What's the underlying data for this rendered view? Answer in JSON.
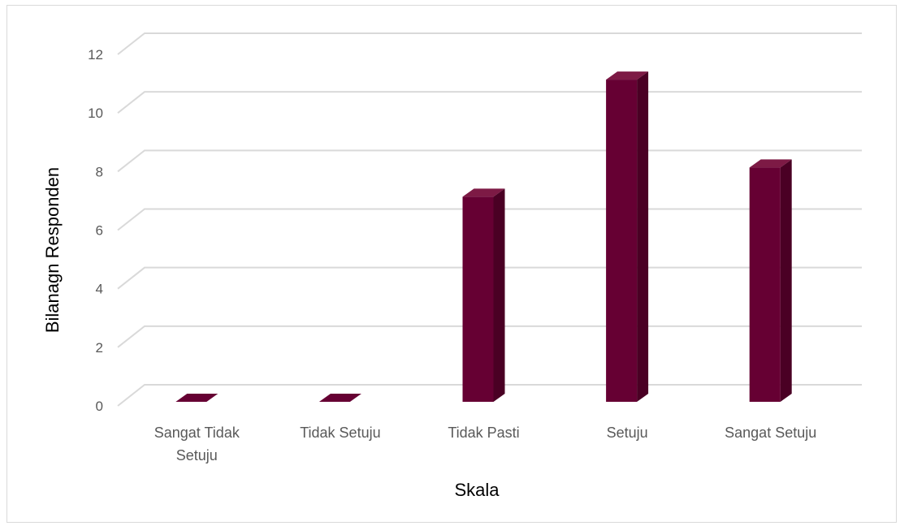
{
  "chart_data": {
    "type": "bar",
    "title": "",
    "xlabel": "Skala",
    "ylabel": "Bilanagn Responden",
    "categories": [
      [
        "Sangat Tidak",
        "Setuju"
      ],
      [
        "Tidak Setuju"
      ],
      [
        "Tidak Pasti"
      ],
      [
        "Setuju"
      ],
      [
        "Sangat Setuju"
      ]
    ],
    "values": [
      0,
      0,
      7,
      11,
      8
    ],
    "ylim": [
      0,
      12
    ],
    "yticks": [
      0,
      2,
      4,
      6,
      8,
      10,
      12
    ],
    "grid": true,
    "style": "3d-column",
    "colors": {
      "bar_front": "#660033",
      "bar_side": "#4a0024",
      "bar_top": "#7d1a45",
      "grid": "#d9d9d9",
      "floor": "#d9d9d9"
    }
  }
}
